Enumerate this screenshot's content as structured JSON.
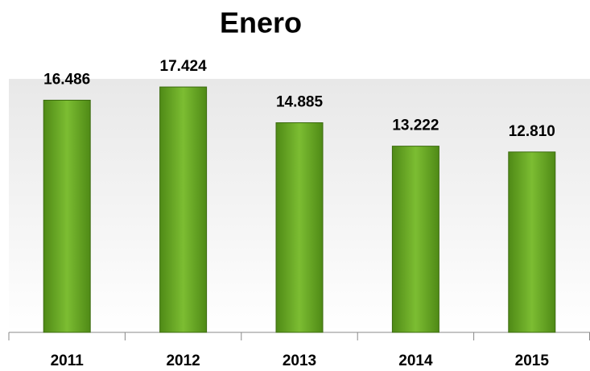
{
  "chart_data": {
    "type": "bar",
    "title": "Enero",
    "categories": [
      "2011",
      "2012",
      "2013",
      "2014",
      "2015"
    ],
    "values": [
      16486,
      17424,
      14885,
      13222,
      12810
    ],
    "value_labels": [
      "16.486",
      "17.424",
      "14.885",
      "13.222",
      "12.810"
    ],
    "color": "#6aa62a",
    "ylim": [
      0,
      18000
    ]
  }
}
